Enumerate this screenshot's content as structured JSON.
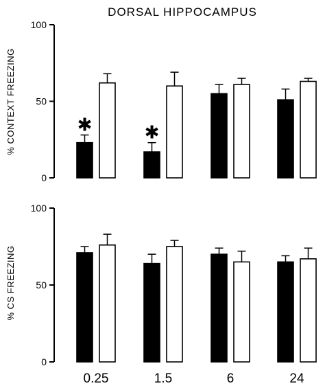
{
  "title": "DORSAL HIPPOCAMPUS",
  "x_tick_labels": [
    "0.25",
    "1.5",
    "6",
    "24"
  ],
  "chart_data": [
    {
      "type": "bar",
      "ylabel": "% CONTEXT FREEZING",
      "ylim": [
        0,
        100
      ],
      "yticks": [
        "0",
        "50",
        "100"
      ],
      "categories": [
        "0.25",
        "1.5",
        "6",
        "24"
      ],
      "series": [
        {
          "color": "#000000",
          "values": [
            23,
            17,
            55,
            51
          ],
          "errors": [
            5,
            6,
            6,
            7
          ]
        },
        {
          "color": "#ffffff",
          "values": [
            62,
            60,
            61,
            63
          ],
          "errors": [
            6,
            9,
            4,
            2
          ]
        }
      ],
      "annotations": [
        {
          "text": "✱",
          "category": "0.25",
          "series_index": 0
        },
        {
          "text": "✱",
          "category": "1.5",
          "series_index": 0
        }
      ]
    },
    {
      "type": "bar",
      "ylabel": "% CS FREEZING",
      "ylim": [
        0,
        100
      ],
      "yticks": [
        "0",
        "50",
        "100"
      ],
      "categories": [
        "0.25",
        "1.5",
        "6",
        "24"
      ],
      "series": [
        {
          "color": "#000000",
          "values": [
            71,
            64,
            70,
            65
          ],
          "errors": [
            4,
            6,
            4,
            4
          ]
        },
        {
          "color": "#ffffff",
          "values": [
            76,
            75,
            65,
            67
          ],
          "errors": [
            7,
            4,
            7,
            7
          ]
        }
      ]
    }
  ]
}
